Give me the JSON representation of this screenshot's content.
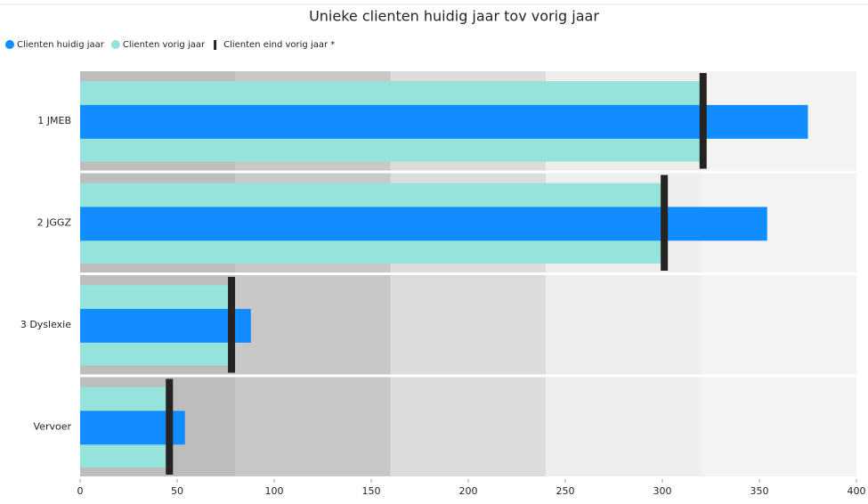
{
  "chart_data": {
    "type": "bullet",
    "title": "Unieke clienten huidig jaar tov vorig jaar",
    "categories": [
      "1 JMEB",
      "2 JGGZ",
      "3 Dyslexie",
      "Vervoer"
    ],
    "series": [
      {
        "name": "Clienten huidig jaar",
        "color": "#118dff",
        "values": [
          375,
          354,
          88,
          54
        ]
      },
      {
        "name": "Clienten vorig jaar",
        "color": "#95e3da",
        "values": [
          320,
          300,
          77,
          44
        ]
      },
      {
        "name": "Clienten eind vorig jaar *",
        "color": "#252423",
        "values": [
          321,
          301,
          78,
          46
        ]
      }
    ],
    "ranges": [
      {
        "value": 80,
        "color": "#bdbdbd"
      },
      {
        "value": 160,
        "color": "#c8c8c8"
      },
      {
        "value": 240,
        "color": "#dcdcdc"
      },
      {
        "value": 320,
        "color": "#eeeeee"
      },
      {
        "value": 400,
        "color": "#f3f3f3"
      }
    ],
    "xlim": [
      0,
      400
    ],
    "xticks": [
      0,
      50,
      100,
      150,
      200,
      250,
      300,
      350,
      400
    ],
    "legend": "top-left"
  }
}
